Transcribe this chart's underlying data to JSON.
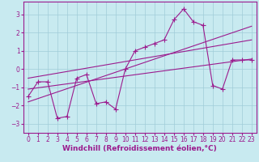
{
  "title": "",
  "xlabel": "Windchill (Refroidissement éolien,°C)",
  "ylabel": "",
  "bg_color": "#c8eaf0",
  "line_color": "#9b1b8e",
  "xlim": [
    -0.5,
    23.5
  ],
  "ylim": [
    -3.5,
    3.7
  ],
  "yticks": [
    -3,
    -2,
    -1,
    0,
    1,
    2,
    3
  ],
  "xticks": [
    0,
    1,
    2,
    3,
    4,
    5,
    6,
    7,
    8,
    9,
    10,
    11,
    12,
    13,
    14,
    15,
    16,
    17,
    18,
    19,
    20,
    21,
    22,
    23
  ],
  "series1_x": [
    0,
    1,
    2,
    3,
    4,
    5,
    6,
    7,
    8,
    9,
    10,
    11,
    12,
    13,
    14,
    15,
    16,
    17,
    18,
    19,
    20,
    21,
    22,
    23
  ],
  "series1_y": [
    -1.5,
    -0.7,
    -0.7,
    -2.7,
    -2.6,
    -0.5,
    -0.3,
    -1.9,
    -1.8,
    -2.2,
    0.0,
    1.0,
    1.2,
    1.4,
    1.6,
    2.7,
    3.3,
    2.6,
    2.4,
    -0.9,
    -1.1,
    0.5,
    0.5,
    0.5
  ],
  "reg_line1_x": [
    0,
    23
  ],
  "reg_line1_y": [
    -1.8,
    2.35
  ],
  "reg_line2_x": [
    0,
    23
  ],
  "reg_line2_y": [
    -0.5,
    1.6
  ],
  "reg_line3_x": [
    0,
    23
  ],
  "reg_line3_y": [
    -1.1,
    0.55
  ],
  "marker": "+",
  "markersize": 4,
  "linewidth": 0.8,
  "grid_color": "#a0ccd8",
  "xlabel_fontsize": 6.5,
  "tick_fontsize": 5.5,
  "tick_color": "#9b1b8e",
  "xlabel_color": "#9b1b8e",
  "spine_color": "#9b1b8e"
}
